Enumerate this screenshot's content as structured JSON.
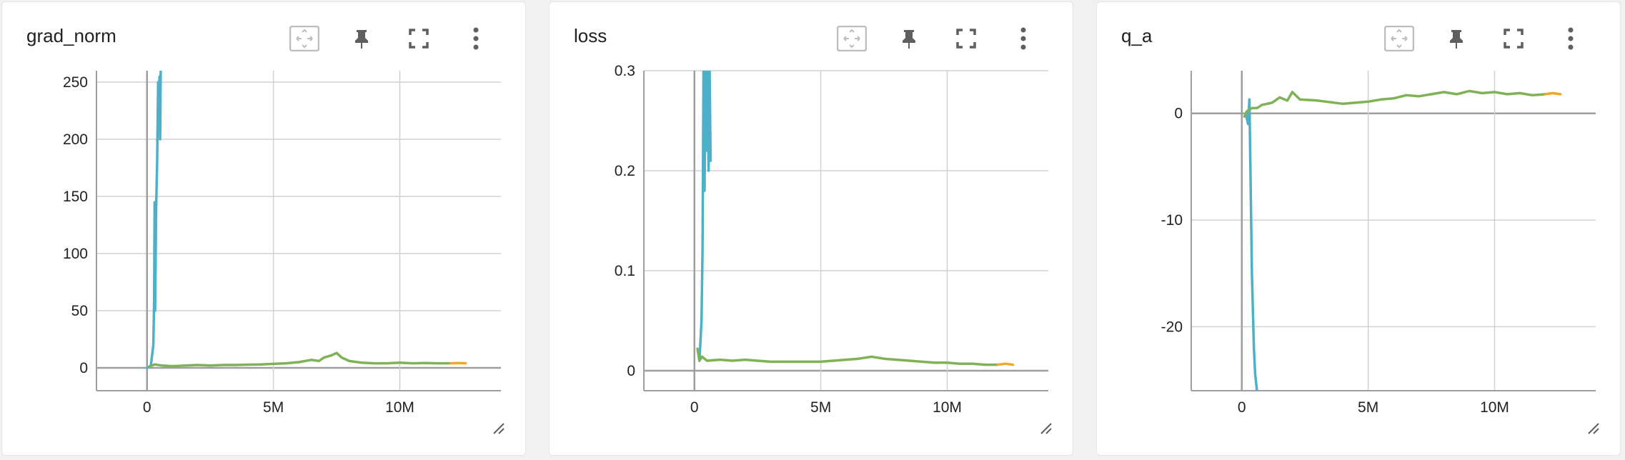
{
  "toolbar_icons": [
    "fit-domain-icon",
    "pin-icon",
    "fullscreen-icon",
    "more-vert-icon"
  ],
  "colors": {
    "cyan_run": "#4cb0c9",
    "green_run": "#7fb156",
    "orange_run": "#f5a623",
    "grid": "#d0d0d0",
    "axis": "#9e9e9e"
  },
  "cards": [
    {
      "title": "grad_norm",
      "chart_data": {
        "type": "line",
        "x_ticks": [
          0,
          5000000,
          10000000
        ],
        "x_tick_labels": [
          "0",
          "5M",
          "10M"
        ],
        "y_ticks": [
          0,
          50,
          100,
          150,
          200,
          250
        ],
        "y_tick_labels": [
          "0",
          "50",
          "100",
          "150",
          "200",
          "250"
        ],
        "xlim": [
          -2000000,
          14000000
        ],
        "ylim": [
          -20,
          260
        ],
        "grid": true,
        "series": [
          {
            "color": "#4cb0c9",
            "points": [
              [
                0,
                0
              ],
              [
                150000,
                2
              ],
              [
                250000,
                20
              ],
              [
                280000,
                60
              ],
              [
                300000,
                145
              ],
              [
                320000,
                50
              ],
              [
                360000,
                140
              ],
              [
                400000,
                180
              ],
              [
                440000,
                250
              ],
              [
                460000,
                240
              ],
              [
                500000,
                255
              ],
              [
                520000,
                200
              ],
              [
                540000,
                260
              ]
            ]
          },
          {
            "color": "#7fb156",
            "points": [
              [
                100000,
                1
              ],
              [
                300000,
                3
              ],
              [
                600000,
                2
              ],
              [
                1000000,
                1.5
              ],
              [
                1500000,
                2
              ],
              [
                2000000,
                2.5
              ],
              [
                2500000,
                2
              ],
              [
                3000000,
                2.5
              ],
              [
                3500000,
                2.5
              ],
              [
                4000000,
                2.8
              ],
              [
                4500000,
                3
              ],
              [
                5000000,
                3.5
              ],
              [
                5500000,
                4
              ],
              [
                6000000,
                5
              ],
              [
                6500000,
                7
              ],
              [
                6800000,
                6
              ],
              [
                7000000,
                9
              ],
              [
                7300000,
                11
              ],
              [
                7500000,
                13
              ],
              [
                7700000,
                9
              ],
              [
                8000000,
                6
              ],
              [
                8500000,
                4.5
              ],
              [
                9000000,
                4
              ],
              [
                9500000,
                4
              ],
              [
                10000000,
                4.5
              ],
              [
                10500000,
                4
              ],
              [
                11000000,
                4.2
              ],
              [
                11500000,
                4
              ],
              [
                12000000,
                4
              ]
            ]
          },
          {
            "color": "#f5a623",
            "points": [
              [
                12000000,
                4
              ],
              [
                12300000,
                4.2
              ],
              [
                12600000,
                4
              ]
            ]
          }
        ]
      }
    },
    {
      "title": "loss",
      "chart_data": {
        "type": "line",
        "x_ticks": [
          0,
          5000000,
          10000000
        ],
        "x_tick_labels": [
          "0",
          "5M",
          "10M"
        ],
        "y_ticks": [
          0,
          0.1,
          0.2,
          0.3
        ],
        "y_tick_labels": [
          "0",
          "0.1",
          "0.2",
          "0.3"
        ],
        "xlim": [
          -2000000,
          14000000
        ],
        "ylim": [
          -0.02,
          0.3
        ],
        "grid": true,
        "series": [
          {
            "color": "#4cb0c9",
            "points": [
              [
                150000,
                0.02
              ],
              [
                200000,
                0.01
              ],
              [
                280000,
                0.05
              ],
              [
                320000,
                0.12
              ],
              [
                360000,
                0.3
              ],
              [
                400000,
                0.18
              ],
              [
                440000,
                0.3
              ],
              [
                480000,
                0.22
              ],
              [
                520000,
                0.3
              ],
              [
                560000,
                0.2
              ],
              [
                600000,
                0.3
              ],
              [
                640000,
                0.21
              ]
            ]
          },
          {
            "color": "#7fb156",
            "points": [
              [
                120000,
                0.022
              ],
              [
                200000,
                0.01
              ],
              [
                300000,
                0.014
              ],
              [
                500000,
                0.01
              ],
              [
                1000000,
                0.011
              ],
              [
                1500000,
                0.01
              ],
              [
                2000000,
                0.011
              ],
              [
                3000000,
                0.009
              ],
              [
                4000000,
                0.009
              ],
              [
                5000000,
                0.009
              ],
              [
                5500000,
                0.01
              ],
              [
                6000000,
                0.011
              ],
              [
                6500000,
                0.012
              ],
              [
                7000000,
                0.014
              ],
              [
                7500000,
                0.012
              ],
              [
                8000000,
                0.011
              ],
              [
                8500000,
                0.01
              ],
              [
                9000000,
                0.009
              ],
              [
                9500000,
                0.008
              ],
              [
                10000000,
                0.008
              ],
              [
                10500000,
                0.007
              ],
              [
                11000000,
                0.007
              ],
              [
                11500000,
                0.006
              ],
              [
                12000000,
                0.006
              ]
            ]
          },
          {
            "color": "#f5a623",
            "points": [
              [
                12000000,
                0.006
              ],
              [
                12300000,
                0.007
              ],
              [
                12600000,
                0.006
              ]
            ]
          }
        ]
      }
    },
    {
      "title": "q_a",
      "chart_data": {
        "type": "line",
        "x_ticks": [
          0,
          5000000,
          10000000
        ],
        "x_tick_labels": [
          "0",
          "5M",
          "10M"
        ],
        "y_ticks": [
          -20,
          -10,
          0
        ],
        "y_tick_labels": [
          "-20",
          "-10",
          "0"
        ],
        "xlim": [
          -2000000,
          14000000
        ],
        "ylim": [
          -26,
          4
        ],
        "grid": true,
        "series": [
          {
            "color": "#4cb0c9",
            "points": [
              [
                150000,
                0
              ],
              [
                250000,
                -1
              ],
              [
                300000,
                1.3
              ],
              [
                340000,
                -5
              ],
              [
                400000,
                -15
              ],
              [
                480000,
                -22
              ],
              [
                530000,
                -24.5
              ],
              [
                600000,
                -26
              ]
            ]
          },
          {
            "color": "#7fb156",
            "points": [
              [
                100000,
                -0.3
              ],
              [
                200000,
                0.2
              ],
              [
                400000,
                0.5
              ],
              [
                600000,
                0.5
              ],
              [
                800000,
                0.8
              ],
              [
                1200000,
                1.0
              ],
              [
                1500000,
                1.5
              ],
              [
                1800000,
                1.2
              ],
              [
                2000000,
                2.0
              ],
              [
                2300000,
                1.3
              ],
              [
                3000000,
                1.2
              ],
              [
                4000000,
                0.9
              ],
              [
                4500000,
                1.0
              ],
              [
                5000000,
                1.1
              ],
              [
                5500000,
                1.3
              ],
              [
                6000000,
                1.4
              ],
              [
                6500000,
                1.7
              ],
              [
                7000000,
                1.6
              ],
              [
                7500000,
                1.8
              ],
              [
                8000000,
                2.0
              ],
              [
                8500000,
                1.8
              ],
              [
                9000000,
                2.1
              ],
              [
                9500000,
                1.9
              ],
              [
                10000000,
                2.0
              ],
              [
                10500000,
                1.8
              ],
              [
                11000000,
                1.9
              ],
              [
                11500000,
                1.7
              ],
              [
                12000000,
                1.8
              ]
            ]
          },
          {
            "color": "#f5a623",
            "points": [
              [
                12000000,
                1.8
              ],
              [
                12300000,
                1.9
              ],
              [
                12600000,
                1.8
              ]
            ]
          }
        ]
      }
    }
  ]
}
